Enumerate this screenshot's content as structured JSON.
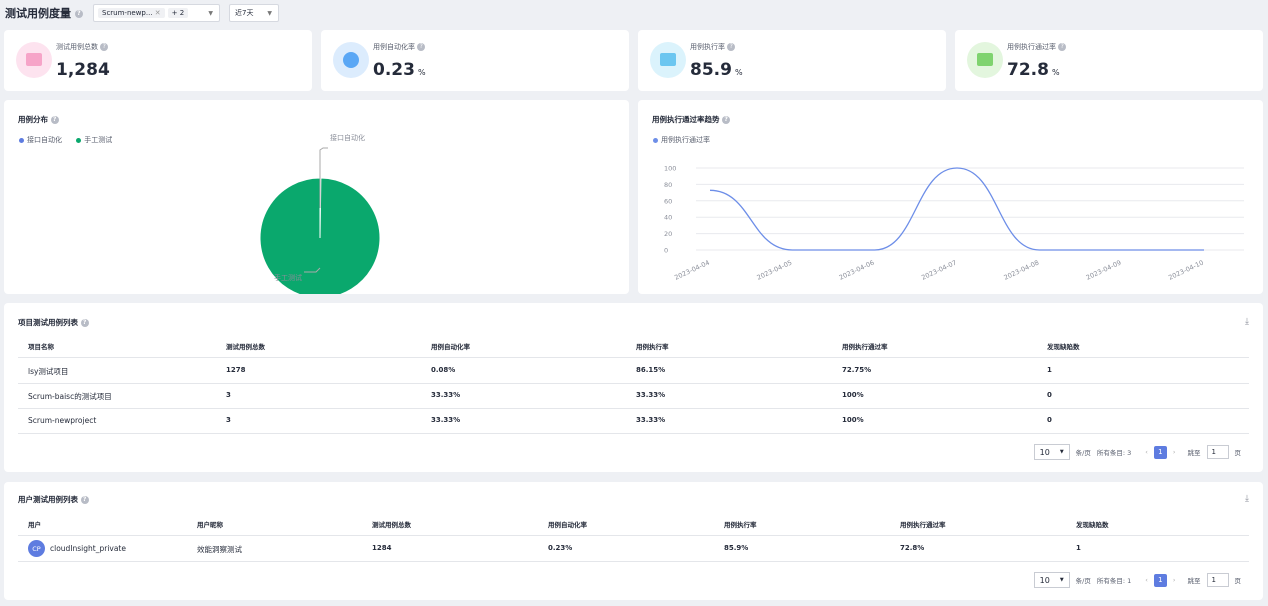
{
  "header": {
    "title": "测试用例度量",
    "project_filter": "Scrum-newp...",
    "project_more": "+ 2",
    "time_filter": "近7天"
  },
  "kpis": [
    {
      "label": "测试用例总数",
      "value": "1,284",
      "unit": "",
      "color": "#f6a4c8"
    },
    {
      "label": "用例自动化率",
      "value": "0.23",
      "unit": "%",
      "color": "#5aa7f5"
    },
    {
      "label": "用例执行率",
      "value": "85.9",
      "unit": "%",
      "color": "#6bc6f0"
    },
    {
      "label": "用例执行通过率",
      "value": "72.8",
      "unit": "%",
      "color": "#7fd36f"
    }
  ],
  "pie": {
    "title": "用例分布",
    "legend": [
      "接口自动化",
      "手工测试"
    ],
    "callout_top": "接口自动化",
    "callout_bottom": "手工测试"
  },
  "trend": {
    "title": "用例执行通过率趋势",
    "legend": "用例执行通过率"
  },
  "chart_data": [
    {
      "type": "pie",
      "title": "用例分布",
      "slices": [
        {
          "name": "接口自动化",
          "value": 3,
          "color": "#5e7ce0"
        },
        {
          "name": "手工测试",
          "value": 1281,
          "color": "#0aa86d"
        }
      ]
    },
    {
      "type": "line",
      "title": "用例执行通过率趋势",
      "x": [
        "2023-04-04",
        "2023-04-05",
        "2023-04-06",
        "2023-04-07",
        "2023-04-08",
        "2023-04-09",
        "2023-04-10"
      ],
      "series": [
        {
          "name": "用例执行通过率",
          "values": [
            72.8,
            0,
            0,
            100,
            0,
            0,
            0
          ],
          "color": "#6d8ee8"
        }
      ],
      "yticks": [
        "100",
        "80",
        "60",
        "40",
        "20",
        "0"
      ],
      "ylim": [
        0,
        100
      ]
    }
  ],
  "project_table": {
    "title": "项目测试用例列表",
    "headers": [
      "项目名称",
      "测试用例总数",
      "用例自动化率",
      "用例执行率",
      "用例执行通过率",
      "发现缺陷数"
    ],
    "rows": [
      [
        "lsy测试项目",
        "1278",
        "0.08%",
        "86.15%",
        "72.75%",
        "1"
      ],
      [
        "Scrum-baisc的测试项目",
        "3",
        "33.33%",
        "33.33%",
        "100%",
        "0"
      ],
      [
        "Scrum-newproject",
        "3",
        "33.33%",
        "33.33%",
        "100%",
        "0"
      ]
    ],
    "pager": {
      "size": "10",
      "per_page": "条/页",
      "total": "所有条目: 3",
      "page": "1",
      "goto": "跳至",
      "goto_val": "1",
      "suffix": "页"
    }
  },
  "user_table": {
    "title": "用户测试用例列表",
    "headers": [
      "用户",
      "用户昵称",
      "测试用例总数",
      "用例自动化率",
      "用例执行率",
      "用例执行通过率",
      "发现缺陷数"
    ],
    "rows": [
      {
        "avatar": "CP",
        "user": "cloudInsight_private",
        "nick": "效能洞察测试",
        "total": "1284",
        "auto": "0.23%",
        "exec": "85.9%",
        "pass": "72.8%",
        "defects": "1"
      }
    ],
    "pager": {
      "size": "10",
      "per_page": "条/页",
      "total": "所有条目: 1",
      "page": "1",
      "goto": "跳至",
      "goto_val": "1",
      "suffix": "页"
    }
  }
}
